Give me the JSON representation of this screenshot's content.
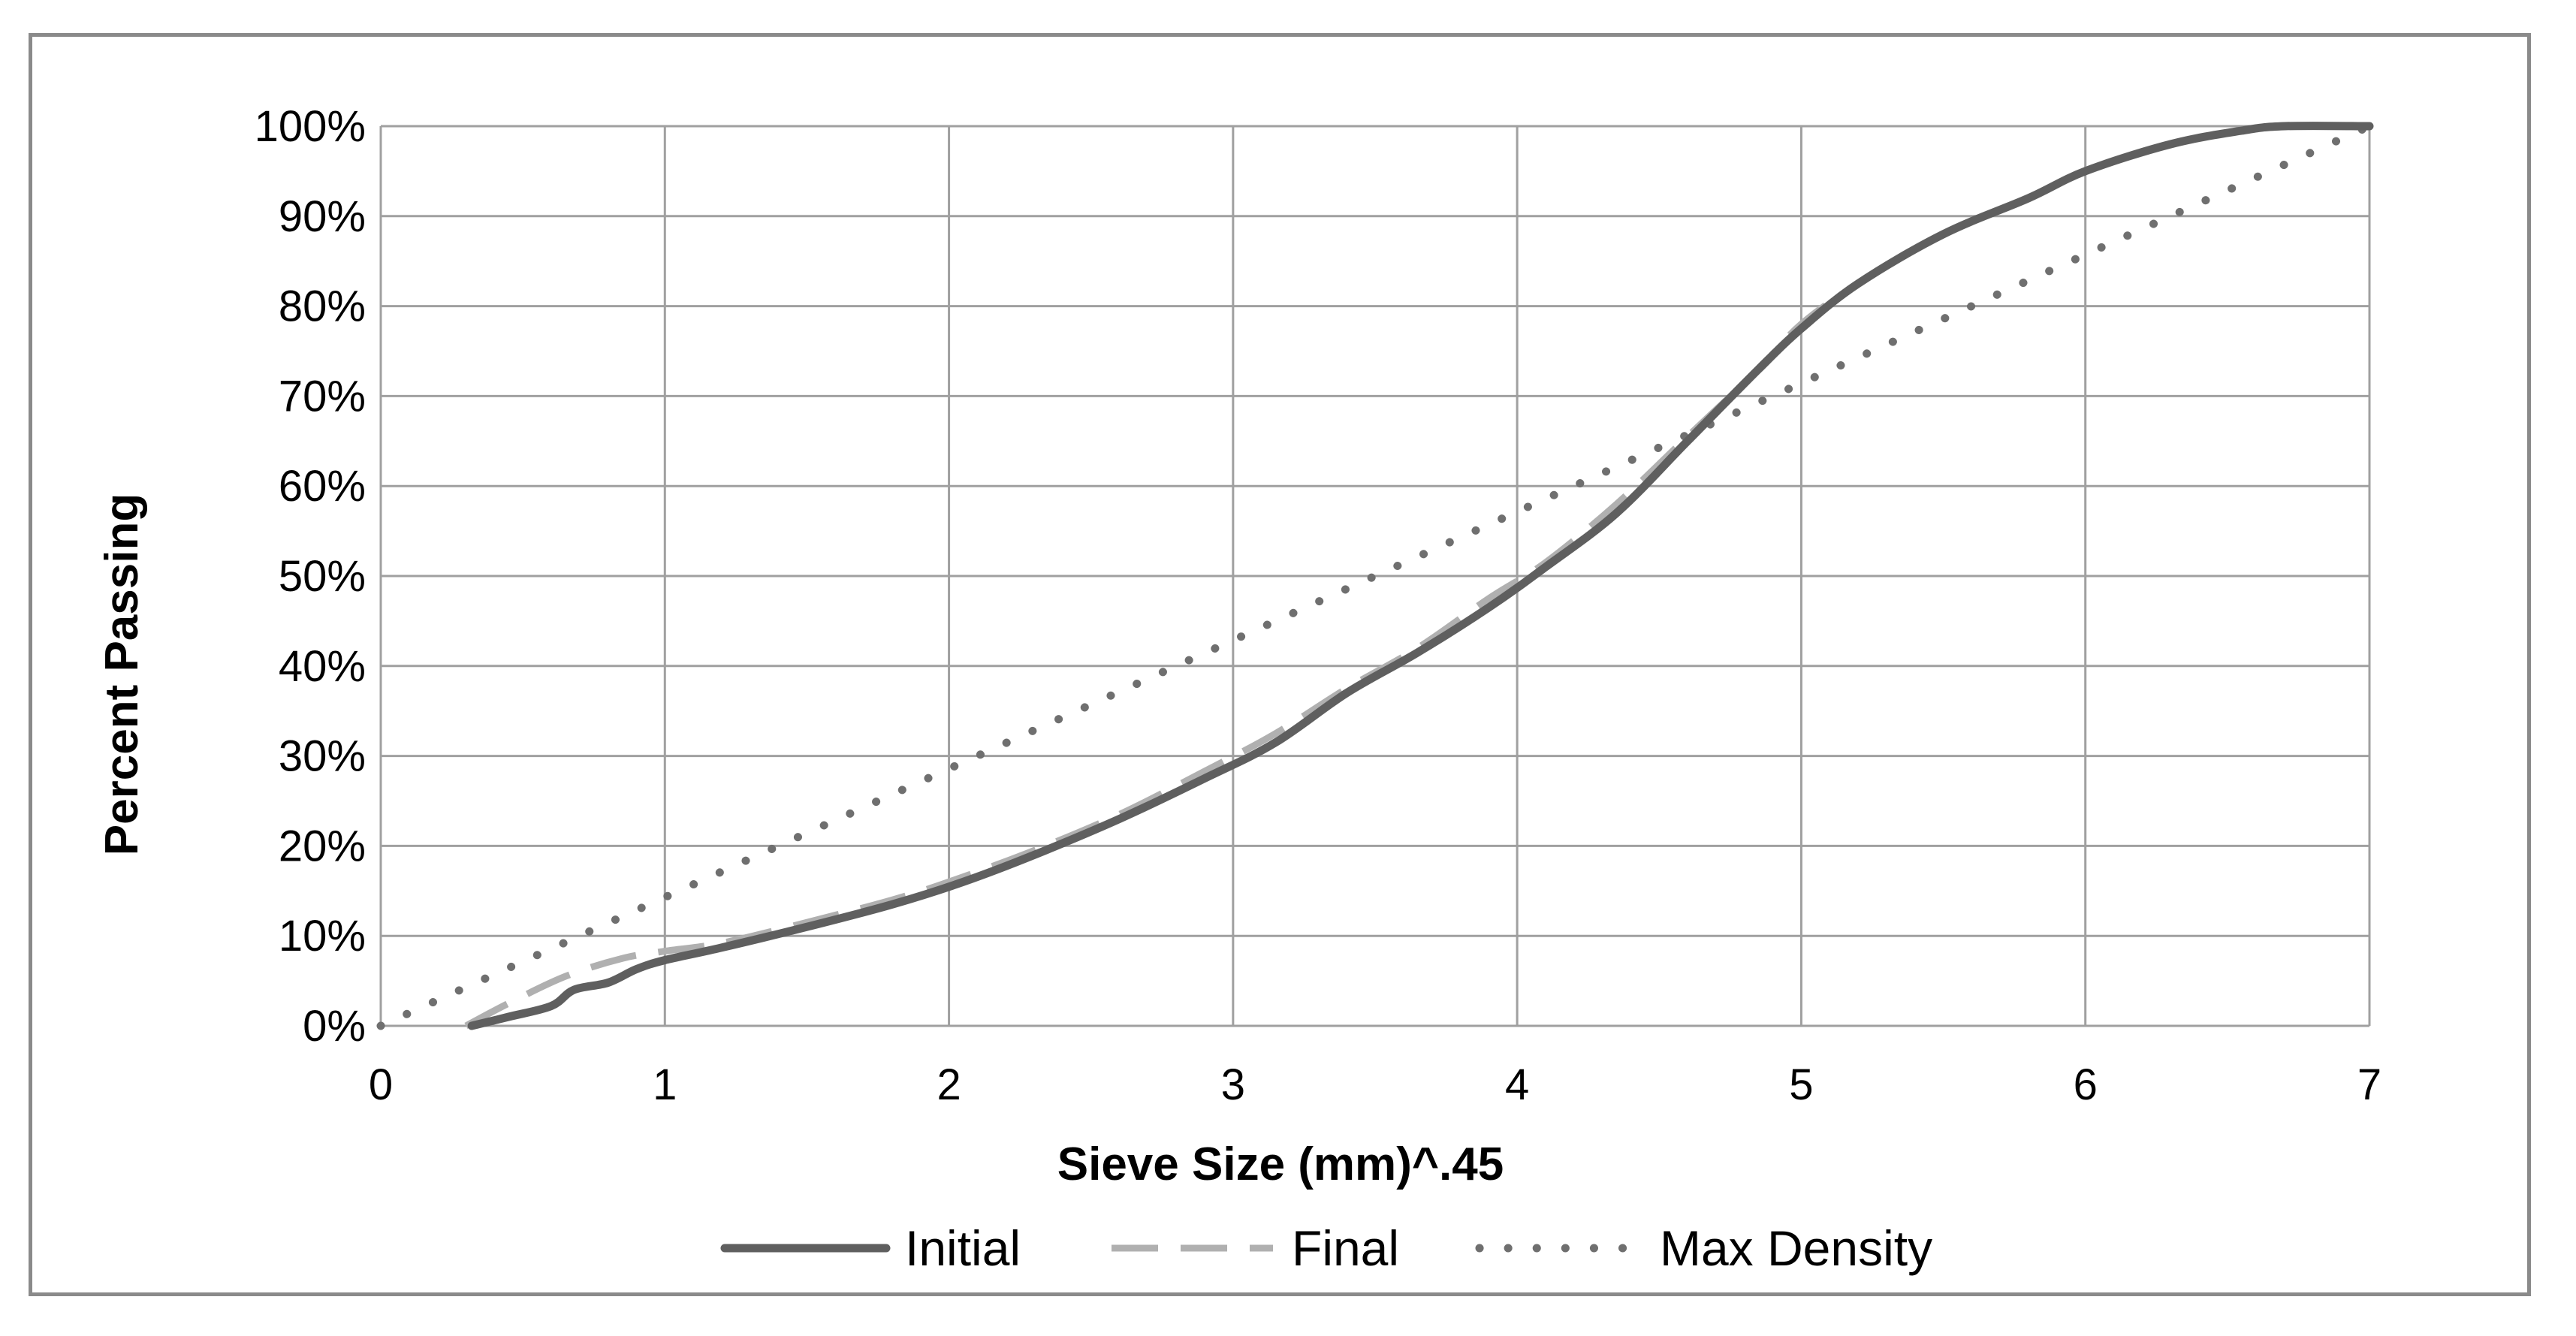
{
  "chart_data": {
    "type": "line",
    "title": "",
    "xlabel": "Sieve Size (mm)^.45",
    "ylabel": "Percent Passing",
    "xlim": [
      0,
      7
    ],
    "ylim": [
      0,
      100
    ],
    "x_ticks": [
      0,
      1,
      2,
      3,
      4,
      5,
      6,
      7
    ],
    "y_ticks": [
      0,
      10,
      20,
      30,
      40,
      50,
      60,
      70,
      80,
      90,
      100
    ],
    "x_tick_labels": [
      "0",
      "1",
      "2",
      "3",
      "4",
      "5",
      "6",
      "7"
    ],
    "y_tick_labels": [
      "0%",
      "10%",
      "20%",
      "30%",
      "40%",
      "50%",
      "60%",
      "70%",
      "80%",
      "90%",
      "100%"
    ],
    "grid": true,
    "legend_position": "bottom",
    "series": [
      {
        "name": "Initial",
        "style": "solid",
        "color": "#5f5f5f",
        "points": [
          [
            0.32,
            0
          ],
          [
            0.45,
            1
          ],
          [
            0.6,
            2.2
          ],
          [
            0.68,
            4
          ],
          [
            0.8,
            4.8
          ],
          [
            0.9,
            6.3
          ],
          [
            1.0,
            7.3
          ],
          [
            1.2,
            8.7
          ],
          [
            1.5,
            11
          ],
          [
            1.8,
            13.5
          ],
          [
            2.05,
            16
          ],
          [
            2.3,
            19
          ],
          [
            2.6,
            23
          ],
          [
            2.9,
            27.5
          ],
          [
            3.15,
            31.5
          ],
          [
            3.4,
            37
          ],
          [
            3.65,
            41.5
          ],
          [
            3.9,
            46.5
          ],
          [
            4.1,
            51
          ],
          [
            4.35,
            57
          ],
          [
            4.6,
            65
          ],
          [
            4.85,
            73
          ],
          [
            5.0,
            77.5
          ],
          [
            5.2,
            82.5
          ],
          [
            5.5,
            88
          ],
          [
            5.8,
            92
          ],
          [
            6.0,
            95
          ],
          [
            6.3,
            98
          ],
          [
            6.55,
            99.5
          ],
          [
            6.7,
            100
          ],
          [
            7.0,
            100
          ]
        ]
      },
      {
        "name": "Final",
        "style": "dashed",
        "color": "#b0b0b0",
        "points": [
          [
            0.3,
            0
          ],
          [
            0.45,
            2.5
          ],
          [
            0.65,
            5.5
          ],
          [
            0.85,
            7.5
          ],
          [
            1.0,
            8.3
          ],
          [
            1.2,
            9.2
          ],
          [
            1.5,
            11.5
          ],
          [
            1.8,
            14
          ],
          [
            2.0,
            16
          ],
          [
            2.3,
            19.5
          ],
          [
            2.6,
            23.5
          ],
          [
            2.9,
            28.3
          ],
          [
            3.15,
            32.5
          ],
          [
            3.4,
            37.5
          ],
          [
            3.65,
            42
          ],
          [
            3.9,
            47.5
          ],
          [
            4.1,
            51.5
          ],
          [
            4.35,
            58
          ],
          [
            4.6,
            65.5
          ],
          [
            4.85,
            73
          ],
          [
            5.0,
            78
          ],
          [
            5.2,
            82.5
          ],
          [
            5.5,
            88
          ],
          [
            5.8,
            92
          ],
          [
            6.0,
            95
          ],
          [
            6.3,
            98
          ],
          [
            6.55,
            99.5
          ],
          [
            6.7,
            100
          ],
          [
            7.0,
            100
          ]
        ]
      },
      {
        "name": "Max Density",
        "style": "dotted",
        "color": "#6f6f6f",
        "points": [
          [
            0,
            0
          ],
          [
            7,
            100
          ]
        ]
      }
    ]
  }
}
